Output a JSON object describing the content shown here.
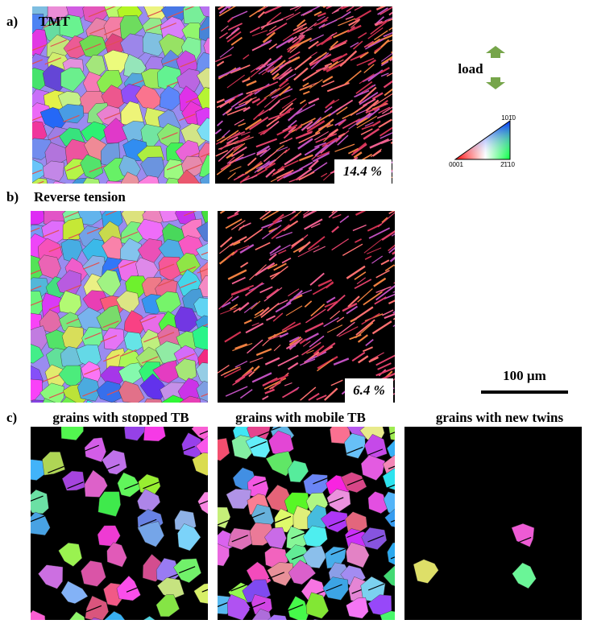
{
  "figure": {
    "panel_a": {
      "letter": "a)",
      "title": "TMT",
      "twin_fraction": "14.4 %"
    },
    "panel_b": {
      "letter": "b)",
      "title": "Reverse tension",
      "twin_fraction": "6.4 %"
    },
    "panel_c": {
      "letter": "c)",
      "titles": [
        "grains with stopped TB",
        "grains with mobile TB",
        "grains with new twins"
      ]
    },
    "load_label": "load",
    "ipf_key": {
      "top": "101̄0",
      "left": "0001",
      "right": "2̄1̄10"
    },
    "scale_bar": "100 µm"
  }
}
